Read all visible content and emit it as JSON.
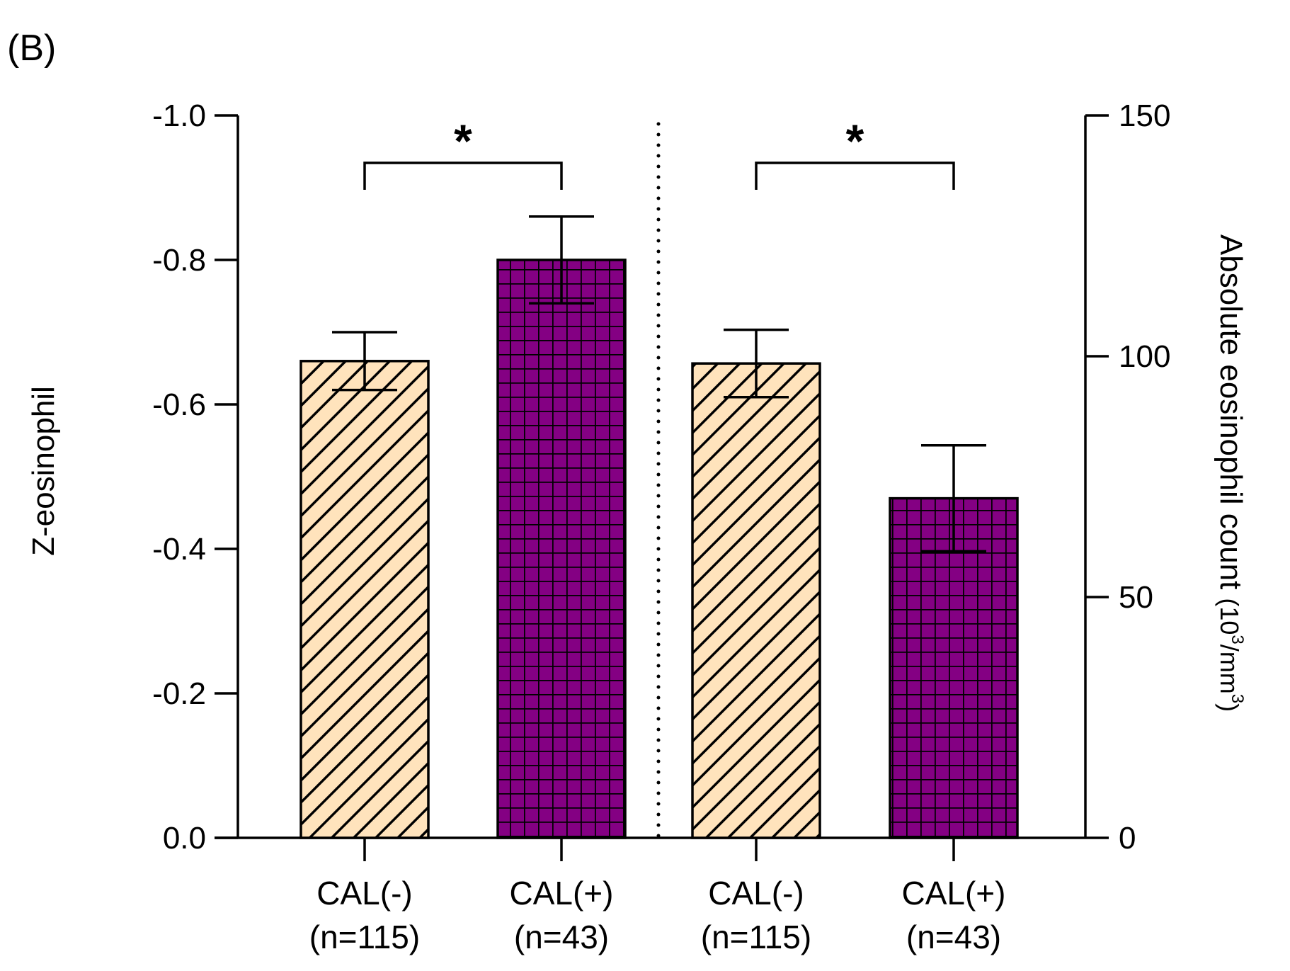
{
  "panel_label": "(B)",
  "chart_data": {
    "type": "bar",
    "title": "",
    "left_axis": {
      "label": "Z-eosinophil",
      "range": [
        0.0,
        -1.0
      ],
      "ticks": [
        0.0,
        -0.2,
        -0.4,
        -0.6,
        -0.8,
        -1.0
      ],
      "tick_labels": [
        "0.0",
        "-0.2",
        "-0.4",
        "-0.6",
        "-0.8",
        "-1.0"
      ],
      "inverted": true
    },
    "right_axis": {
      "label": "Absolute eosinophil count",
      "unit_base": "(10",
      "unit_exp1": "3",
      "unit_mid": "/mm",
      "unit_exp2": "3",
      "unit_end": ")",
      "range": [
        0,
        150
      ],
      "ticks": [
        0,
        50,
        100,
        150
      ],
      "tick_labels": [
        "0",
        "50",
        "100",
        "150"
      ]
    },
    "bars": [
      {
        "group": "Z-eosinophil",
        "axis": "left",
        "line1": "CAL(-)",
        "line2": "(n=115)",
        "value": -0.66,
        "error": 0.04,
        "pattern": "diag"
      },
      {
        "group": "Z-eosinophil",
        "axis": "left",
        "line1": "CAL(+)",
        "line2": "(n=43)",
        "value": -0.8,
        "error": 0.06,
        "pattern": "grid"
      },
      {
        "group": "Absolute eosinophil count",
        "axis": "right",
        "line1": "CAL(-)",
        "line2": "(n=115)",
        "value": 98.5,
        "error": 7.0,
        "pattern": "diag"
      },
      {
        "group": "Absolute eosinophil count",
        "axis": "right",
        "line1": "CAL(+)",
        "line2": "(n=43)",
        "value": 70.5,
        "error": 11.0,
        "pattern": "grid"
      }
    ],
    "significance": [
      {
        "bars": [
          0,
          1
        ],
        "label": "*"
      },
      {
        "bars": [
          2,
          3
        ],
        "label": "*"
      }
    ],
    "colors": {
      "CAL(-)": "#ffe3bc",
      "CAL(+)": "#840083",
      "pattern_line": "#000000"
    },
    "divider": "dotted"
  }
}
